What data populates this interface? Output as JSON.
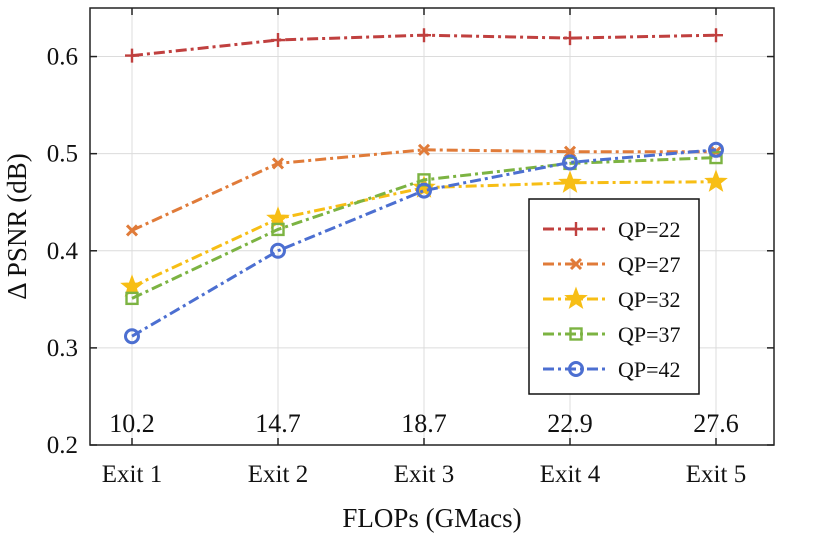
{
  "chart_data": {
    "type": "line",
    "xlabel": "FLOPs (GMacs)",
    "ylabel": "Δ PSNR (dB)",
    "ylim": [
      0.2,
      0.65
    ],
    "yticks": [
      "0.2",
      "0.3",
      "0.4",
      "0.5",
      "0.6"
    ],
    "grid": true,
    "legend_position": "right",
    "categories": [
      "Exit 1",
      "Exit 2",
      "Exit 3",
      "Exit 4",
      "Exit 5"
    ],
    "flops_labels": [
      "10.2",
      "14.7",
      "18.7",
      "22.9",
      "27.6"
    ],
    "series": [
      {
        "name": "QP=22",
        "color": "#C0403F",
        "marker": "plus",
        "values": [
          0.601,
          0.617,
          0.622,
          0.619,
          0.622
        ]
      },
      {
        "name": "QP=27",
        "color": "#E07B39",
        "marker": "x",
        "values": [
          0.421,
          0.49,
          0.504,
          0.502,
          0.502
        ]
      },
      {
        "name": "QP=32",
        "color": "#F7BE15",
        "marker": "star",
        "values": [
          0.363,
          0.433,
          0.465,
          0.47,
          0.471
        ]
      },
      {
        "name": "QP=37",
        "color": "#7CB342",
        "marker": "square",
        "values": [
          0.351,
          0.422,
          0.473,
          0.49,
          0.496
        ]
      },
      {
        "name": "QP=42",
        "color": "#4C6FD1",
        "marker": "circle",
        "values": [
          0.312,
          0.4,
          0.462,
          0.491,
          0.504
        ]
      }
    ]
  }
}
